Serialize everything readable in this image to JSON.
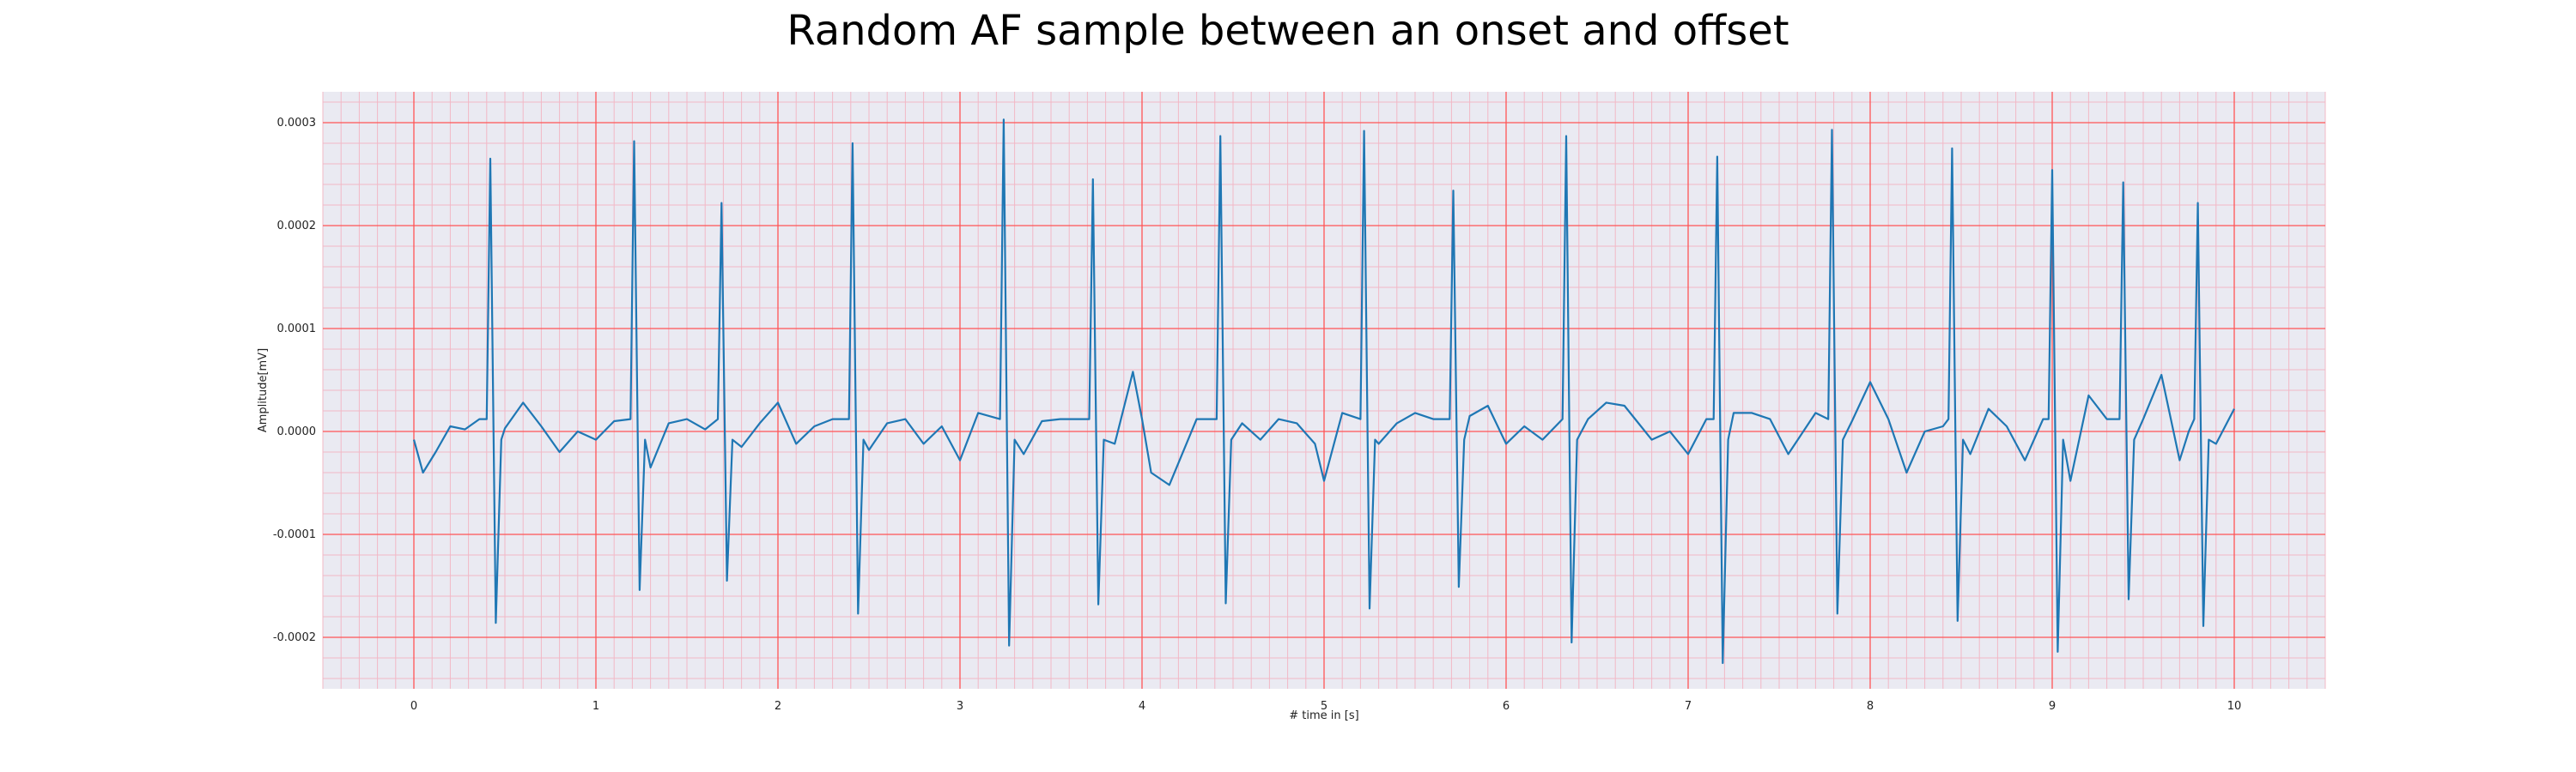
{
  "chart_data": {
    "type": "line",
    "title": "Random AF sample between an onset and offset",
    "xlabel": "# time in [s]",
    "ylabel": "Amplitude[mV]",
    "xlim": [
      -0.5,
      10.5
    ],
    "ylim": [
      -0.00025,
      0.00033
    ],
    "x_ticks": [
      0,
      1,
      2,
      3,
      4,
      5,
      6,
      7,
      8,
      9,
      10
    ],
    "x_tick_labels": [
      "0",
      "1",
      "2",
      "3",
      "4",
      "5",
      "6",
      "7",
      "8",
      "9",
      "10"
    ],
    "y_ticks": [
      0.0003,
      0.0002,
      0.0001,
      0.0,
      -0.0001,
      -0.0002
    ],
    "y_tick_labels": [
      "0.0003",
      "0.0002",
      "0.0001",
      "0.0000",
      "-0.0001",
      "-0.0002"
    ],
    "grid": "major and minor",
    "colors": {
      "background": "#eaeaf2",
      "major_grid": "#ff5555",
      "minor_grid": "#f2b8c6",
      "line": "#1f77b4"
    },
    "series": [
      {
        "r_peak_times": [
          0.42,
          1.21,
          1.69,
          2.41,
          3.24,
          3.73,
          4.43,
          5.22,
          5.71,
          6.33,
          7.16,
          7.79,
          8.45,
          9.0,
          9.39,
          9.8
        ],
        "r_peak_values": [
          0.000265,
          0.000282,
          0.000222,
          0.00028,
          0.000303,
          0.000245,
          0.000287,
          0.000292,
          0.000234,
          0.000287,
          0.000267,
          0.000293,
          0.000275,
          0.000254,
          0.000242,
          0.000222
        ],
        "s_trough_values": [
          -0.000186,
          -0.000154,
          -0.000145,
          -0.000177,
          -0.000208,
          -0.000168,
          -0.000167,
          -0.000172,
          -0.000151,
          -0.000205,
          -0.000225,
          -0.000177,
          -0.000184,
          -0.000214,
          -0.000163,
          -0.000189
        ],
        "baseline_points": [
          [
            0.0,
            -8e-06
          ],
          [
            0.05,
            -4e-05
          ],
          [
            0.12,
            -2e-05
          ],
          [
            0.2,
            5e-06
          ],
          [
            0.28,
            2e-06
          ],
          [
            0.36,
            1.2e-05
          ],
          [
            0.5,
            3e-06
          ],
          [
            0.6,
            2.8e-05
          ],
          [
            0.7,
            5e-06
          ],
          [
            0.8,
            -2e-05
          ],
          [
            0.9,
            0.0
          ],
          [
            1.0,
            -8e-06
          ],
          [
            1.1,
            1e-05
          ],
          [
            1.3,
            -3.5e-05
          ],
          [
            1.4,
            8e-06
          ],
          [
            1.5,
            1.2e-05
          ],
          [
            1.6,
            2e-06
          ],
          [
            1.8,
            -1.5e-05
          ],
          [
            1.9,
            8e-06
          ],
          [
            2.0,
            2.8e-05
          ],
          [
            2.1,
            -1.2e-05
          ],
          [
            2.2,
            5e-06
          ],
          [
            2.3,
            1.2e-05
          ],
          [
            2.5,
            -1.8e-05
          ],
          [
            2.6,
            8e-06
          ],
          [
            2.7,
            1.2e-05
          ],
          [
            2.8,
            -1.2e-05
          ],
          [
            2.9,
            5e-06
          ],
          [
            3.0,
            -2.8e-05
          ],
          [
            3.1,
            1.8e-05
          ],
          [
            3.35,
            -2.2e-05
          ],
          [
            3.45,
            1e-05
          ],
          [
            3.55,
            1.2e-05
          ],
          [
            3.65,
            1.2e-05
          ],
          [
            3.85,
            -1.2e-05
          ],
          [
            3.95,
            5.8e-05
          ],
          [
            4.0,
            1.2e-05
          ],
          [
            4.05,
            -4e-05
          ],
          [
            4.15,
            -5.2e-05
          ],
          [
            4.3,
            1.2e-05
          ],
          [
            4.55,
            8e-06
          ],
          [
            4.65,
            -8e-06
          ],
          [
            4.75,
            1.2e-05
          ],
          [
            4.85,
            8e-06
          ],
          [
            4.95,
            -1.2e-05
          ],
          [
            5.0,
            -4.8e-05
          ],
          [
            5.1,
            1.8e-05
          ],
          [
            5.3,
            -1.2e-05
          ],
          [
            5.4,
            8e-06
          ],
          [
            5.5,
            1.8e-05
          ],
          [
            5.6,
            1.2e-05
          ],
          [
            5.8,
            1.5e-05
          ],
          [
            5.9,
            2.5e-05
          ],
          [
            6.0,
            -1.2e-05
          ],
          [
            6.1,
            5e-06
          ],
          [
            6.2,
            -8e-06
          ],
          [
            6.45,
            1.2e-05
          ],
          [
            6.55,
            2.8e-05
          ],
          [
            6.65,
            2.5e-05
          ],
          [
            6.8,
            -8e-06
          ],
          [
            6.9,
            0.0
          ],
          [
            7.0,
            -2.2e-05
          ],
          [
            7.1,
            1.2e-05
          ],
          [
            7.25,
            1.8e-05
          ],
          [
            7.35,
            1.8e-05
          ],
          [
            7.45,
            1.2e-05
          ],
          [
            7.55,
            -2.2e-05
          ],
          [
            7.7,
            1.8e-05
          ],
          [
            7.9,
            1e-05
          ],
          [
            8.0,
            4.8e-05
          ],
          [
            8.1,
            1.2e-05
          ],
          [
            8.2,
            -4e-05
          ],
          [
            8.3,
            0.0
          ],
          [
            8.4,
            5e-06
          ],
          [
            8.55,
            -2.2e-05
          ],
          [
            8.65,
            2.2e-05
          ],
          [
            8.75,
            5e-06
          ],
          [
            8.85,
            -2.8e-05
          ],
          [
            8.95,
            1.2e-05
          ],
          [
            9.1,
            -4.8e-05
          ],
          [
            9.2,
            3.5e-05
          ],
          [
            9.3,
            1.2e-05
          ],
          [
            9.5,
            1.2e-05
          ],
          [
            9.6,
            5.5e-05
          ],
          [
            9.7,
            -2.8e-05
          ],
          [
            9.75,
            0.0
          ],
          [
            9.9,
            -1.2e-05
          ],
          [
            10.0,
            2.2e-05
          ]
        ]
      }
    ]
  }
}
